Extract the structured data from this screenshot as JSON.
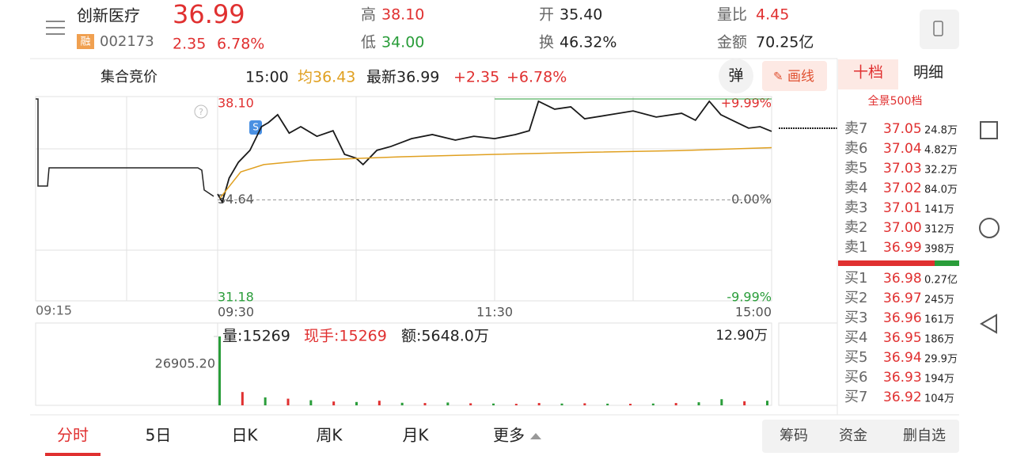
{
  "header": {
    "name": "创新医疗",
    "badge": "融",
    "code": "002173",
    "price": "36.99",
    "change": "2.35",
    "pct": "6.78%",
    "high_label": "高",
    "high": "38.10",
    "low_label": "低",
    "low": "34.00",
    "open_label": "开",
    "open": "35.40",
    "turnover_label": "换",
    "turnover": "46.32%",
    "ratio_label": "量比",
    "ratio": "4.45",
    "amount_label": "金额",
    "amount": "70.25亿"
  },
  "toolbar": {
    "auction": "集合竞价",
    "time": "15:00",
    "avg": "均36.43",
    "latest": "最新36.99",
    "change": "+2.35",
    "pct": "+6.78%",
    "popup": "弹",
    "draw": "画线"
  },
  "side_tabs": [
    "十档",
    "明细"
  ],
  "full_depth": "全景500档",
  "asks": [
    {
      "label": "卖7",
      "price": "37.05",
      "vol": "24.8万"
    },
    {
      "label": "卖6",
      "price": "37.04",
      "vol": "4.82万"
    },
    {
      "label": "卖5",
      "price": "37.03",
      "vol": "32.2万"
    },
    {
      "label": "卖4",
      "price": "37.02",
      "vol": "84.0万"
    },
    {
      "label": "卖3",
      "price": "37.01",
      "vol": "141万"
    },
    {
      "label": "卖2",
      "price": "37.00",
      "vol": "312万"
    },
    {
      "label": "卖1",
      "price": "36.99",
      "vol": "398万"
    }
  ],
  "bids": [
    {
      "label": "买1",
      "price": "36.98",
      "vol": "0.27亿"
    },
    {
      "label": "买2",
      "price": "36.97",
      "vol": "245万"
    },
    {
      "label": "买3",
      "price": "36.96",
      "vol": "161万"
    },
    {
      "label": "买4",
      "price": "36.95",
      "vol": "186万"
    },
    {
      "label": "买5",
      "price": "36.94",
      "vol": "29.9万"
    },
    {
      "label": "买6",
      "price": "36.93",
      "vol": "194万"
    },
    {
      "label": "买7",
      "price": "36.92",
      "vol": "104万"
    }
  ],
  "auction_time": "09:15",
  "volume_header": {
    "vol": "量:15269",
    "hand": "现手:15269",
    "amount": "额:5648.0万",
    "right": "12.90万"
  },
  "chart_data": [
    {
      "type": "line",
      "xlim": [
        0,
        240
      ],
      "xticks": [
        {
          "value": 0,
          "label": "09:30"
        },
        {
          "value": 120,
          "label": "11:30"
        },
        {
          "value": 240,
          "label": "15:00"
        }
      ],
      "ylim": [
        31.18,
        38.1
      ],
      "yticks": [
        {
          "value": 38.1,
          "label": "38.10"
        },
        {
          "value": 34.64,
          "label": "34.64"
        },
        {
          "value": 31.18,
          "label": "31.18"
        }
      ],
      "y2lim": [
        -9.99,
        9.99
      ],
      "y2ticks": [
        {
          "value": 9.99,
          "label": "+9.99%"
        },
        {
          "value": 0,
          "label": "0.00%"
        },
        {
          "value": -9.99,
          "label": "-9.99%"
        }
      ],
      "series": [
        {
          "color": "#1a1a1a",
          "x": [
            0,
            2,
            5,
            9,
            14,
            19,
            22,
            26,
            31,
            36,
            43,
            50,
            55,
            60,
            63,
            69,
            75,
            84,
            93,
            103,
            111,
            120,
            129,
            135,
            139,
            146,
            153,
            159,
            170,
            180,
            190,
            201,
            207,
            213,
            218,
            225,
            230,
            235,
            240
          ],
          "values": [
            34.84,
            34.57,
            35.39,
            35.93,
            36.34,
            37.15,
            37.29,
            37.56,
            36.93,
            37.15,
            36.82,
            37.01,
            36.2,
            36.07,
            35.85,
            36.34,
            36.47,
            36.74,
            36.88,
            36.69,
            36.82,
            36.74,
            36.88,
            37.01,
            38.02,
            37.75,
            37.83,
            37.42,
            37.56,
            37.69,
            37.48,
            37.61,
            37.37,
            38.02,
            37.56,
            37.29,
            37.1,
            37.15,
            36.99
          ]
        },
        {
          "color": "#e0a020",
          "x": [
            1,
            10,
            20,
            40,
            80,
            120,
            160,
            200,
            240
          ],
          "values": [
            34.7,
            35.6,
            35.85,
            36.0,
            36.12,
            36.2,
            36.27,
            36.33,
            36.43
          ]
        }
      ]
    },
    {
      "type": "bar",
      "xlim": [
        0,
        240
      ],
      "ylim": [
        0,
        26905.2
      ],
      "yticks": [
        {
          "value": 26905.2,
          "label": "26905.20"
        }
      ],
      "x": [
        0,
        10,
        20,
        30,
        40,
        50,
        60,
        70,
        80,
        90,
        100,
        110,
        120,
        130,
        140,
        150,
        160,
        170,
        180,
        190,
        200,
        210,
        220,
        230,
        240
      ],
      "values": [
        26905.2,
        5200,
        3100,
        2600,
        2000,
        1500,
        1300,
        1800,
        1000,
        900,
        1100,
        800,
        700,
        600,
        900,
        700,
        800,
        650,
        600,
        700,
        900,
        1200,
        2400,
        1600,
        1800
      ],
      "colors": [
        "#2a9d3a",
        "#e03030",
        "#2a9d3a",
        "#e03030",
        "#2a9d3a",
        "#e03030",
        "#2a9d3a",
        "#e03030",
        "#2a9d3a",
        "#e03030",
        "#2a9d3a",
        "#e03030",
        "#2a9d3a",
        "#e03030",
        "#e03030",
        "#2a9d3a",
        "#e03030",
        "#2a9d3a",
        "#e03030",
        "#2a9d3a",
        "#e03030",
        "#2a9d3a",
        "#2a9d3a",
        "#e03030",
        "#2a9d3a"
      ]
    }
  ],
  "bottom_tabs": [
    "分时",
    "5日",
    "日K",
    "周K",
    "月K",
    "更多"
  ],
  "bottom_buttons": [
    "筹码",
    "资金",
    "删自选"
  ]
}
